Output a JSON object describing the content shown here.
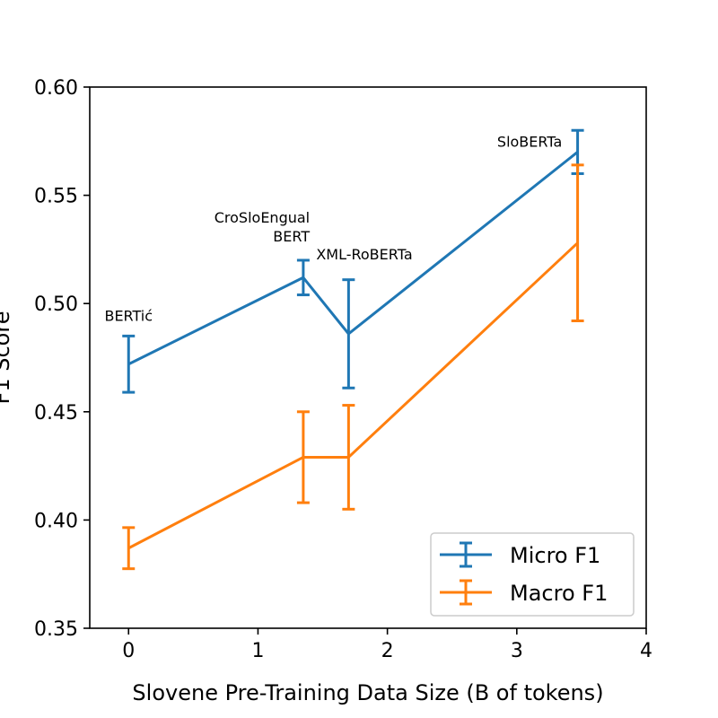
{
  "chart_data": {
    "type": "line",
    "xlabel": "Slovene Pre-Training Data Size (B of tokens)",
    "ylabel": "F1 Score",
    "xlim": [
      -0.3,
      4
    ],
    "ylim": [
      0.35,
      0.6
    ],
    "xticks": [
      0,
      1,
      2,
      3,
      4
    ],
    "yticks": [
      0.35,
      0.4,
      0.45,
      0.5,
      0.55,
      0.6
    ],
    "xtick_labels": [
      "0",
      "1",
      "2",
      "3",
      "4"
    ],
    "ytick_labels": [
      "0.35",
      "0.40",
      "0.45",
      "0.50",
      "0.55",
      "0.60"
    ],
    "grid": false,
    "legend_position": "lower-right",
    "x": [
      0,
      1.35,
      1.7,
      3.47
    ],
    "series": [
      {
        "name": "Micro F1",
        "color": "#1f77b4",
        "values": [
          0.472,
          0.512,
          0.486,
          0.57
        ],
        "error": [
          0.013,
          0.008,
          0.025,
          0.01
        ]
      },
      {
        "name": "Macro F1",
        "color": "#ff7f0e",
        "values": [
          0.387,
          0.429,
          0.429,
          0.528
        ],
        "error": [
          0.0095,
          0.021,
          0.024,
          0.036
        ]
      }
    ],
    "annotations": [
      {
        "lines": [
          "BERTić"
        ],
        "x": 0,
        "y": 0.492,
        "anchor": "middle"
      },
      {
        "lines": [
          "CroSloEngual",
          "BERT"
        ],
        "x": 1.4,
        "y": 0.5375,
        "anchor": "end"
      },
      {
        "lines": [
          "XML-RoBERTa"
        ],
        "x": 1.45,
        "y": 0.5205,
        "anchor": "start"
      },
      {
        "lines": [
          "SloBERTa"
        ],
        "x": 3.35,
        "y": 0.5725,
        "anchor": "end"
      }
    ]
  }
}
